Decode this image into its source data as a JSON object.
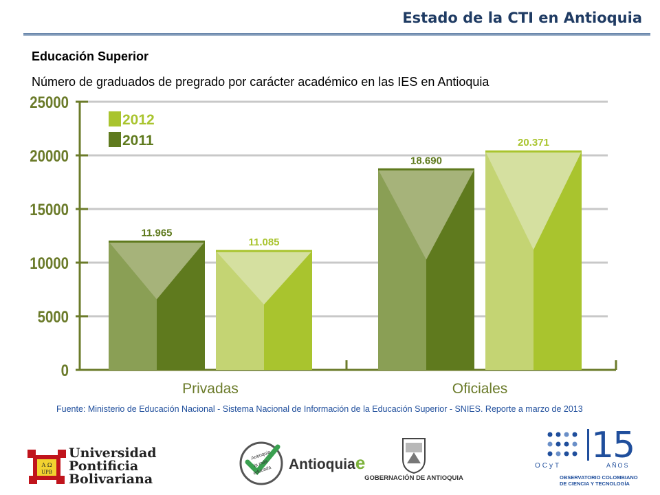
{
  "header": {
    "title": "Estado de la CTI en Antioquia"
  },
  "section_title": "Educación Superior",
  "subtitle": "Número de graduados de pregrado por carácter académico en las IES en Antioquia",
  "source": "Fuente: Ministerio de Educación Nacional  - Sistema Nacional de Información de la Educación Superior - SNIES. Reporte a marzo de 2013",
  "chart_data": {
    "type": "bar",
    "categories": [
      "Privadas",
      "Oficiales"
    ],
    "series": [
      {
        "name": "2011",
        "values": [
          11965,
          18690
        ],
        "labels": [
          "11.965",
          "18.690"
        ],
        "color": "#5f7a1e",
        "light": "#8a9f55",
        "top": "#a6b37a"
      },
      {
        "name": "2012",
        "values": [
          11085,
          20371
        ],
        "labels": [
          "11.085",
          "20.371"
        ],
        "color": "#a9c42e",
        "light": "#c4d473",
        "top": "#d5e0a0"
      }
    ],
    "legend_order": [
      "2012",
      "2011"
    ],
    "yticks": [
      "0",
      "5000",
      "10000",
      "15000",
      "20000",
      "25000"
    ],
    "ylim": [
      0,
      25000
    ],
    "grid": true,
    "legend_position": "top-left"
  },
  "logos": {
    "upb": {
      "line1": "Universidad",
      "line2": "Pontificia",
      "line3": "Bolivariana",
      "shield_top": "A Ω",
      "shield_bottom": "UPB"
    },
    "antioquia": {
      "word": "Antioquia",
      "suffix": "e",
      "badge1": "Antioquia",
      "badge2": "la más",
      "badge3": "educada"
    },
    "gobernacion": {
      "text": "GOBERNACIÓN DE ANTIOQUIA"
    },
    "ocyt": {
      "number": "15",
      "anos": "AÑOS",
      "name": "OCyT",
      "sub1": "OBSERVATORIO COLOMBIANO",
      "sub2": "DE CIENCIA Y TECNOLOGÍA"
    }
  },
  "colors": {
    "title": "#1f3b63",
    "axis": "#6b7b2a",
    "grid": "#c8c8c8",
    "value_label_2011": "#5f7a1e",
    "value_label_2012": "#a9c42e",
    "source_text": "#1f4e9c"
  }
}
